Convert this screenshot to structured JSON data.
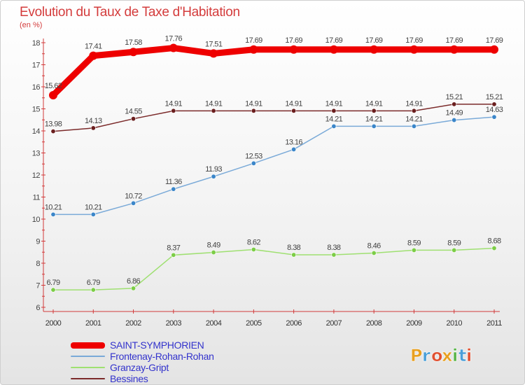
{
  "chart_data": {
    "type": "line",
    "title": "Evolution du Taux de Taxe d'Habitation",
    "subtitle": "(en %)",
    "categories": [
      "2000",
      "2001",
      "2002",
      "2003",
      "2004",
      "2005",
      "2006",
      "2007",
      "2008",
      "2009",
      "2010",
      "2011"
    ],
    "ylim": [
      6,
      18
    ],
    "yticks": [
      6,
      7,
      8,
      9,
      10,
      11,
      12,
      13,
      14,
      15,
      16,
      17,
      18
    ],
    "grid": false,
    "legend_position": "bottom-left",
    "series": [
      {
        "name": "SAINT-SYMPHORIEN",
        "color": "#ee0000",
        "style": "thick",
        "values": [
          15.62,
          17.41,
          17.58,
          17.76,
          17.51,
          17.69,
          17.69,
          17.69,
          17.69,
          17.69,
          17.69,
          17.69
        ],
        "labels": [
          "15.62",
          "17.41",
          "17.58",
          "17.76",
          "17.51",
          "17.69",
          "17.69",
          "17.69",
          "17.69",
          "17.69",
          "17.69",
          "17.69"
        ]
      },
      {
        "name": "Frontenay-Rohan-Rohan",
        "color": "#7aaad8",
        "marker_color": "#3b86c9",
        "values": [
          10.21,
          10.21,
          10.72,
          11.36,
          11.93,
          12.53,
          13.16,
          14.21,
          14.21,
          14.21,
          14.49,
          14.63
        ],
        "labels": [
          "10.21",
          "10.21",
          "10.72",
          "11.36",
          "11.93",
          "12.53",
          "13.16",
          "14.21",
          "14.21",
          "14.21",
          "14.49",
          "14.63"
        ]
      },
      {
        "name": "Granzay-Gript",
        "color": "#9fe071",
        "marker_color": "#7ccd47",
        "values": [
          6.79,
          6.79,
          6.86,
          8.37,
          8.49,
          8.62,
          8.38,
          8.38,
          8.46,
          8.59,
          8.59,
          8.68
        ],
        "labels": [
          "6.79",
          "6.79",
          "6.86",
          "8.37",
          "8.49",
          "8.62",
          "8.38",
          "8.38",
          "8.46",
          "8.59",
          "8.59",
          "8.68"
        ]
      },
      {
        "name": "Bessines",
        "color": "#7b2a2a",
        "marker_color": "#6b1f1f",
        "values": [
          13.98,
          14.13,
          14.55,
          14.91,
          14.91,
          14.91,
          14.91,
          14.91,
          14.91,
          14.91,
          15.21,
          15.21
        ],
        "labels": [
          "13.98",
          "14.13",
          "14.55",
          "14.91",
          "14.91",
          "14.91",
          "14.91",
          "14.91",
          "14.91",
          "14.91",
          "15.21",
          "15.21"
        ]
      }
    ]
  },
  "logo": {
    "letters": [
      "P",
      "r",
      "o",
      "x",
      "i",
      "t",
      "i"
    ],
    "colors": [
      "#e8a020",
      "#4a9fd8",
      "#e05030",
      "#e8a020",
      "#58b548",
      "#4a9fd8",
      "#e05030"
    ]
  }
}
